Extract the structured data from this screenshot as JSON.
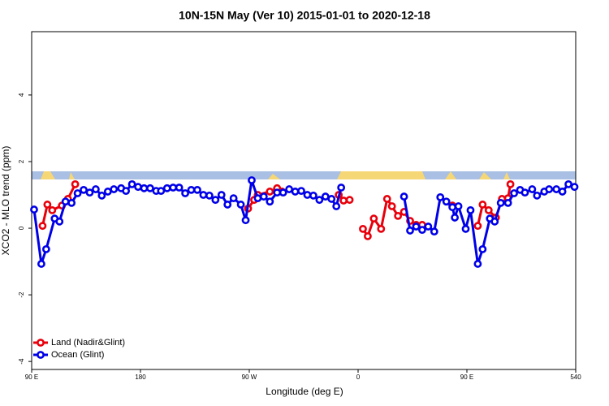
{
  "chart_data": {
    "type": "line",
    "title": "10N-15N May (Ver 10)   2015-01-01 to 2020-12-18",
    "x_label": "Longitude (deg E)",
    "y_label": "XCO2 - MLO trend (ppm)",
    "xlim": [
      90,
      540
    ],
    "ylim": [
      -4.24,
      5.9
    ],
    "xticks": [
      {
        "value": 90,
        "label": "90 E"
      },
      180,
      {
        "value": 270,
        "label": "90 W"
      },
      {
        "value": 360,
        "label": "0"
      },
      {
        "value": 450,
        "label": "90 E"
      },
      540
    ],
    "yticks": [
      -4,
      -2,
      0,
      2,
      4
    ],
    "legend": "bottom-left",
    "series": [
      {
        "name": "Land (Nadir&Glint)",
        "color": "#e8000b",
        "x": [
          99,
          103,
          107,
          115,
          120,
          126,
          null,
          269,
          274,
          277,
          287,
          293,
          297,
          null,
          344,
          348,
          353,
          null,
          364,
          368,
          373,
          379,
          384,
          388,
          393,
          398,
          403,
          408,
          413,
          null,
          438,
          null,
          459,
          463,
          468,
          474,
          479,
          484,
          486
        ],
        "values": [
          0.07,
          0.71,
          0.54,
          0.68,
          0.88,
          1.32,
          null,
          0.59,
          0.85,
          1.0,
          1.1,
          1.2,
          1.1,
          null,
          1.0,
          0.83,
          0.85,
          null,
          -0.02,
          -0.24,
          0.29,
          -0.02,
          0.88,
          0.66,
          0.37,
          0.49,
          0.22,
          0.1,
          0.1,
          null,
          0.68,
          null,
          0.07,
          0.71,
          0.54,
          0.32,
          0.88,
          0.9,
          1.32
        ]
      },
      {
        "name": "Ocean (Glint)",
        "color": "#0000e8",
        "x": [
          92,
          98,
          102,
          109,
          113,
          118,
          123,
          128,
          133,
          138,
          143,
          148,
          153,
          158,
          164,
          168,
          173,
          178,
          183,
          188,
          193,
          197,
          202,
          207,
          212,
          217,
          222,
          227,
          232,
          237,
          242,
          247,
          252,
          257,
          263,
          267,
          272,
          277,
          282,
          287,
          293,
          298,
          303,
          308,
          313,
          318,
          323,
          328,
          333,
          338,
          342,
          346,
          null,
          398,
          403,
          408,
          413,
          418,
          423,
          428,
          433,
          438,
          440,
          443,
          449,
          453,
          459,
          463,
          469,
          473,
          478,
          484,
          489,
          494,
          498,
          504,
          508,
          514,
          518,
          524,
          529,
          534,
          539
        ],
        "values": [
          0.56,
          -1.07,
          -0.63,
          0.29,
          0.2,
          0.8,
          0.76,
          1.05,
          1.15,
          1.07,
          1.17,
          0.98,
          1.1,
          1.17,
          1.2,
          1.12,
          1.32,
          1.24,
          1.2,
          1.2,
          1.12,
          1.12,
          1.2,
          1.22,
          1.22,
          1.05,
          1.15,
          1.15,
          1.0,
          0.98,
          0.85,
          1.0,
          0.71,
          0.9,
          0.71,
          0.24,
          1.44,
          0.9,
          0.95,
          0.8,
          1.07,
          1.07,
          1.17,
          1.1,
          1.12,
          1.0,
          0.98,
          0.85,
          0.95,
          0.88,
          0.66,
          1.22,
          null,
          0.95,
          -0.07,
          0.05,
          -0.05,
          0.05,
          -0.1,
          0.93,
          0.8,
          0.63,
          0.32,
          0.66,
          -0.02,
          0.54,
          -1.07,
          -0.63,
          0.29,
          0.2,
          0.76,
          0.76,
          1.05,
          1.15,
          1.07,
          1.17,
          0.98,
          1.1,
          1.17,
          1.17,
          1.1,
          1.32,
          1.24
        ]
      }
    ]
  }
}
